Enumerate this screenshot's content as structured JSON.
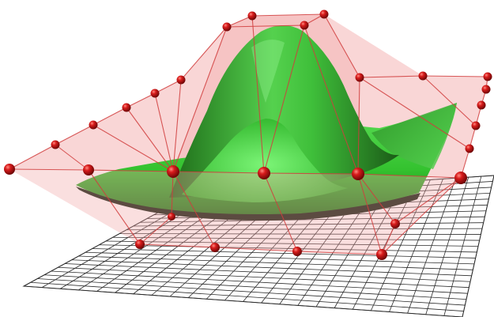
{
  "figure": {
    "colors": {
      "background": "#ffffff",
      "grid_line": "#2a2a2a",
      "grid_fill": "#ffffff",
      "control_net_fill": "#f2a3a3",
      "control_net_line": "#d13d3d",
      "control_point": "#c0141a",
      "surface_light": "#6fe86b",
      "surface_mid": "#3fcf3a",
      "surface_dark": "#1f6d1a",
      "surface_shadow": "#0c1a0c"
    },
    "grid_divisions": 24
  }
}
